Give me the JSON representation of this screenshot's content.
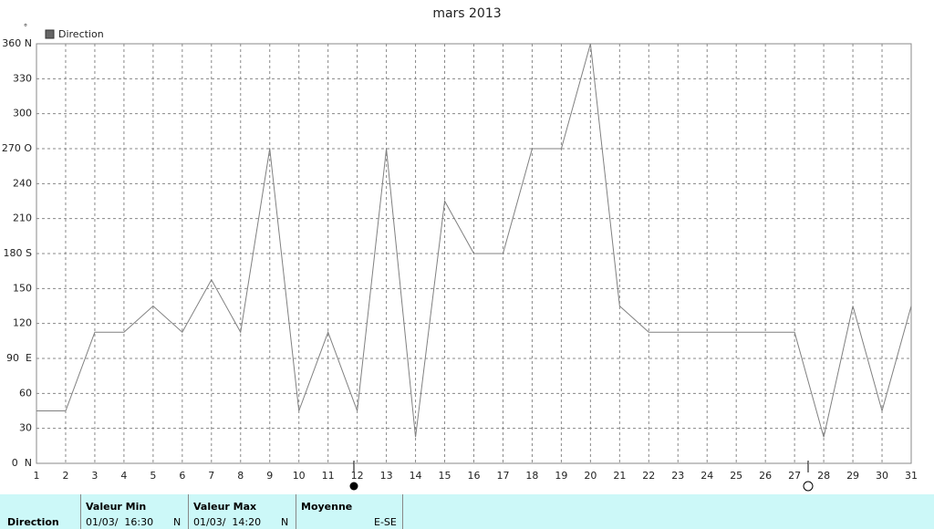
{
  "chart_data": {
    "type": "line",
    "title": "mars 2013",
    "ylabel": "°",
    "x": [
      1,
      2,
      3,
      4,
      5,
      6,
      7,
      8,
      9,
      10,
      11,
      12,
      13,
      14,
      15,
      16,
      17,
      18,
      19,
      20,
      21,
      22,
      23,
      24,
      25,
      26,
      27,
      28,
      29,
      30,
      31
    ],
    "series": [
      {
        "name": "Direction",
        "color": "#808080",
        "values": [
          45,
          45,
          112.5,
          112.5,
          135,
          112.5,
          157.5,
          112.5,
          270,
          45,
          112.5,
          45,
          270,
          22.5,
          225,
          180,
          180,
          270,
          270,
          360,
          135,
          112.5,
          112.5,
          112.5,
          112.5,
          112.5,
          112.5,
          22.5,
          135,
          45,
          135
        ]
      }
    ],
    "xlim": [
      1,
      31
    ],
    "xticks": [
      1,
      2,
      3,
      4,
      5,
      6,
      7,
      8,
      9,
      10,
      11,
      12,
      13,
      14,
      15,
      16,
      17,
      18,
      19,
      20,
      21,
      22,
      23,
      24,
      25,
      26,
      27,
      28,
      29,
      30,
      31
    ],
    "ylim": [
      0,
      360
    ],
    "yticks": [
      {
        "value": 0,
        "label": "0  N"
      },
      30,
      60,
      {
        "value": 90,
        "label": "90  E"
      },
      120,
      150,
      {
        "value": 180,
        "label": "180 S"
      },
      210,
      240,
      {
        "value": 270,
        "label": "270 O"
      },
      300,
      330,
      {
        "value": 360,
        "label": "360 N"
      }
    ],
    "grid": true,
    "legend": "top-left"
  },
  "table": {
    "row_label": "Direction",
    "columns": [
      {
        "header": "Valeur Min",
        "date": "01/03/  16:30",
        "dir": "N"
      },
      {
        "header": "Valeur Max",
        "date": "01/03/  14:20",
        "dir": "N"
      },
      {
        "header": "Moyenne",
        "dir": "E-SE"
      }
    ]
  }
}
